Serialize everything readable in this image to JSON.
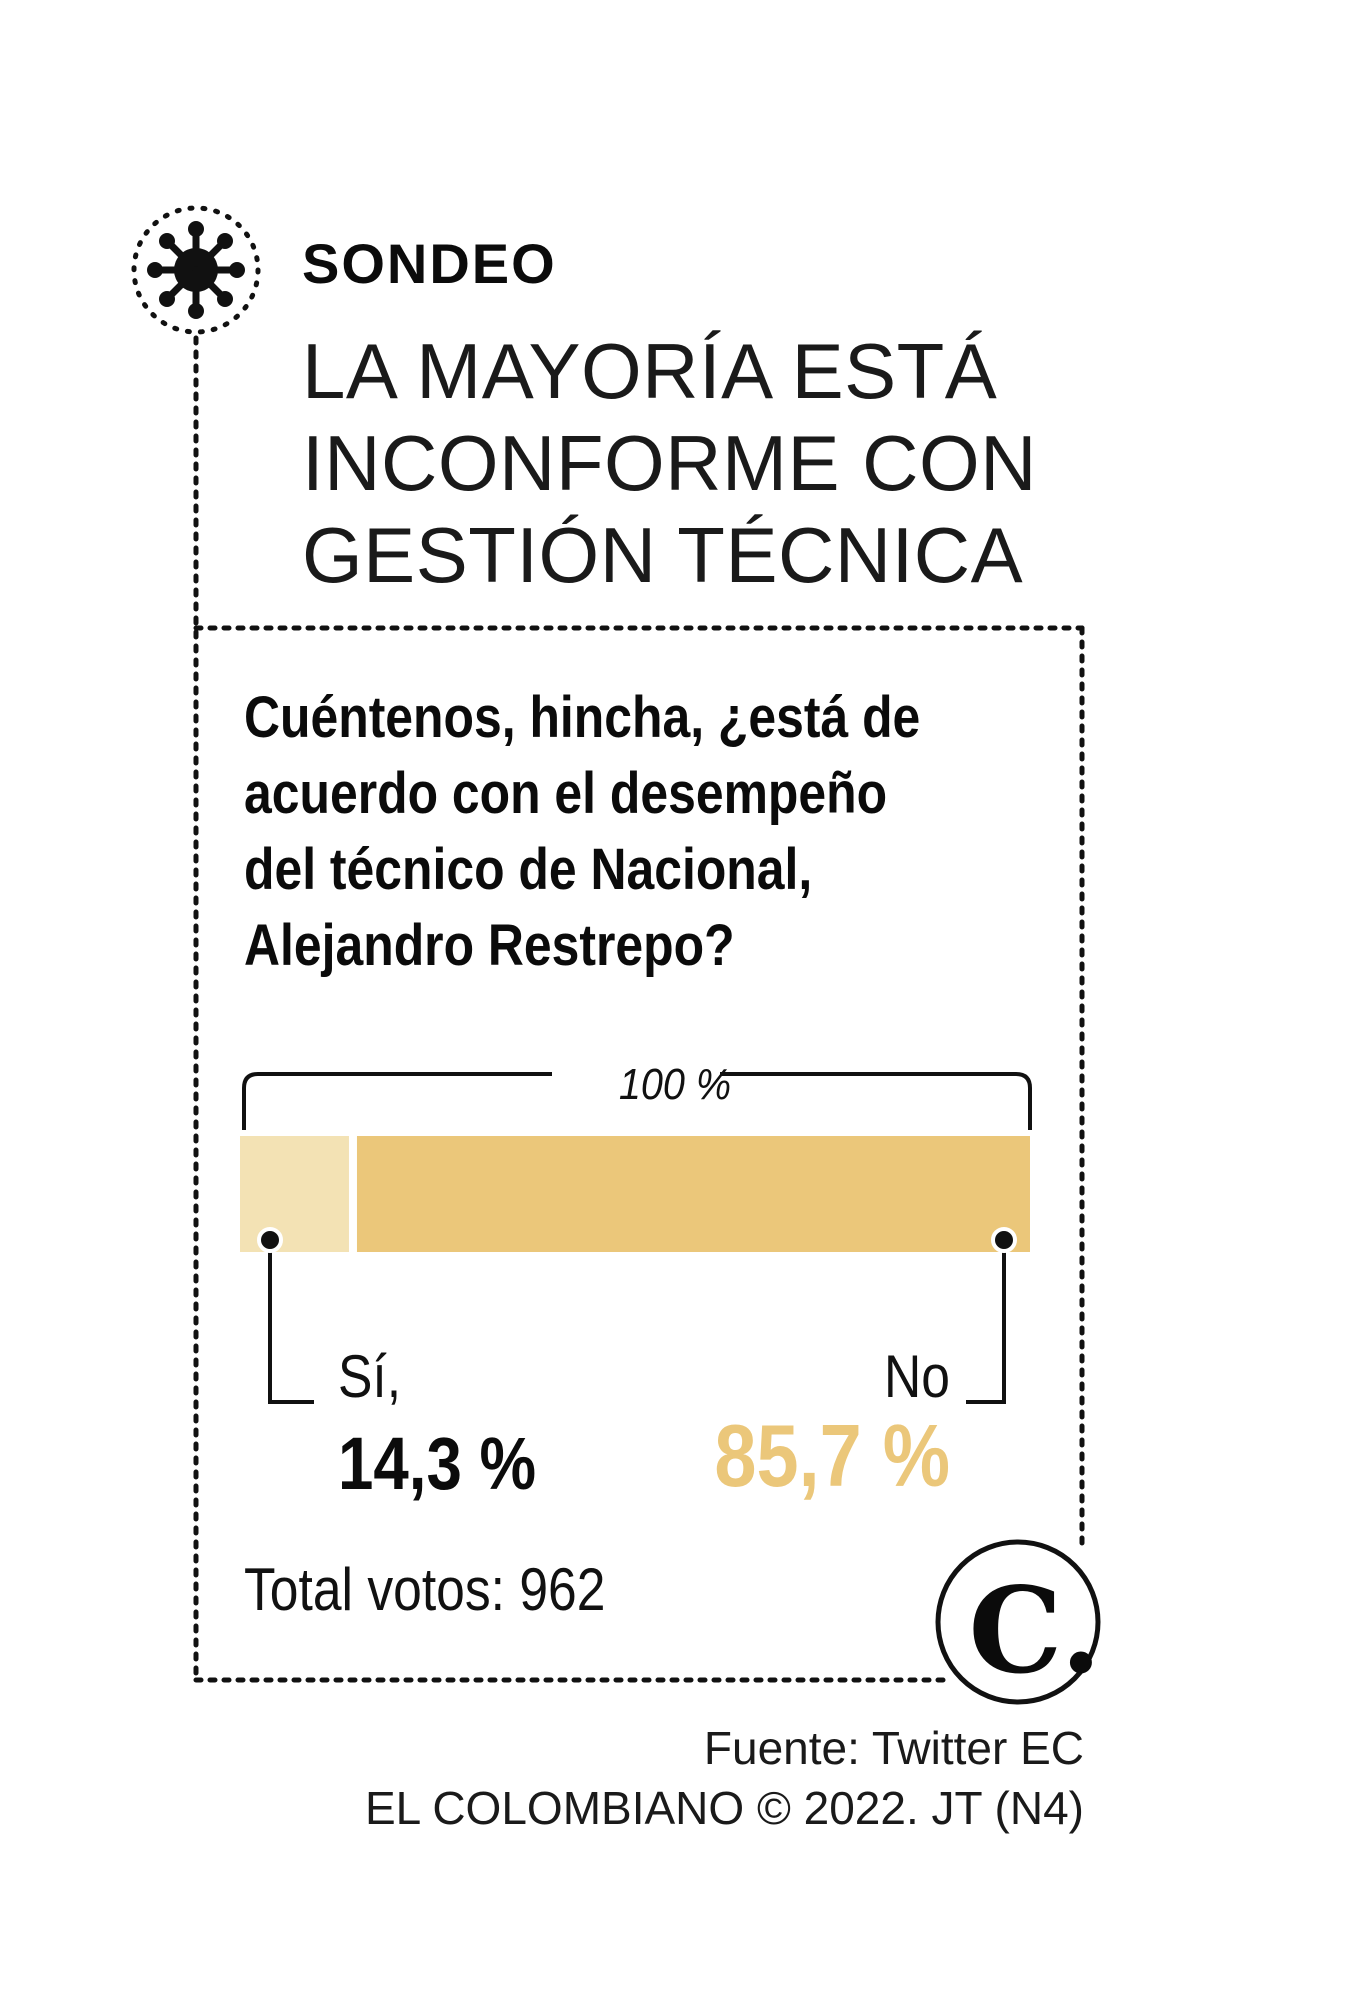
{
  "header": {
    "kicker": "SONDEO",
    "headline_lines": [
      "LA MAYORÍA ESTÁ",
      "INCONFORME CON",
      "GESTIÓN TÉCNICA"
    ],
    "icon": "virus-icon"
  },
  "question_lines": [
    "Cuéntenos, hincha, ¿está de",
    "acuerdo con el desempeño",
    "del técnico de Nacional,",
    "Alejandro Restrepo?"
  ],
  "chart_data": {
    "type": "bar",
    "stacked": true,
    "orientation": "horizontal",
    "total_label": "100 %",
    "categories": [
      "Sí,",
      "No"
    ],
    "values": [
      14.3,
      85.7
    ],
    "value_labels": [
      "14,3 %",
      "85,7 %"
    ],
    "colors": [
      "#f3e2b4",
      "#ebc77a"
    ],
    "xlim": [
      0,
      100
    ]
  },
  "total_votes_text": "Total votos: 962",
  "colors": {
    "si_bar": "#f3e2b4",
    "no_bar": "#ebc77a",
    "no_value_text": "#ebc77a",
    "text": "#111111"
  },
  "footer": {
    "logo_letter": "C.",
    "source_lines": [
      "Fuente: Twitter EC",
      "EL COLOMBIANO © 2022. JT (N4)"
    ]
  }
}
